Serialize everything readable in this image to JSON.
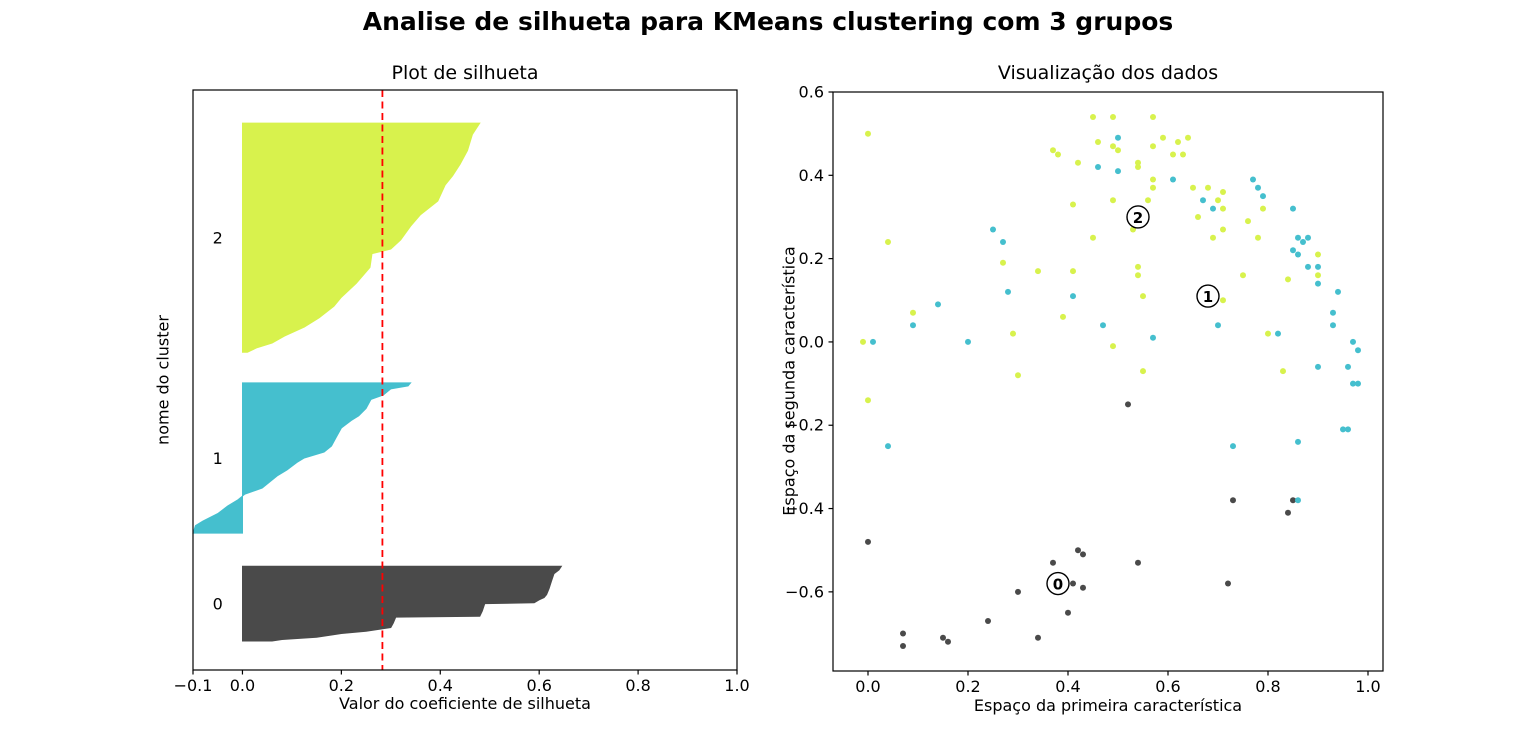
{
  "figure_title": "Analise de silhueta para KMeans clustering com 3 grupos",
  "cluster_colors": {
    "0": "#4a4a4a",
    "1": "#45bfce",
    "2": "#d8f24d"
  },
  "chart_data": [
    {
      "type": "area",
      "title": "Plot de silhueta",
      "xlabel": "Valor do coeficiente de silhueta",
      "ylabel": "nome do cluster",
      "xlim": [
        -0.1,
        1.0
      ],
      "xticks": {
        "values": [
          -0.1,
          0.0,
          0.2,
          0.4,
          0.6,
          0.8,
          1.0
        ],
        "labels": [
          "−0.1",
          "0.0",
          "0.2",
          "0.4",
          "0.6",
          "0.8",
          "1.0"
        ]
      },
      "avg_silhouette": 0.283,
      "avg_line_color": "#ff0000",
      "cluster_label_x": -0.05,
      "clusters": [
        {
          "label": "2",
          "band": [
            0.057,
            0.452
          ],
          "profile": [
            [
              0,
              0.48
            ],
            [
              0.05,
              0.465
            ],
            [
              0.12,
              0.455
            ],
            [
              0.18,
              0.44
            ],
            [
              0.23,
              0.425
            ],
            [
              0.27,
              0.41
            ],
            [
              0.34,
              0.395
            ],
            [
              0.4,
              0.36
            ],
            [
              0.45,
              0.34
            ],
            [
              0.51,
              0.32
            ],
            [
              0.55,
              0.3
            ],
            [
              0.57,
              0.262
            ],
            [
              0.63,
              0.258
            ],
            [
              0.7,
              0.23
            ],
            [
              0.76,
              0.2
            ],
            [
              0.8,
              0.185
            ],
            [
              0.85,
              0.155
            ],
            [
              0.89,
              0.125
            ],
            [
              0.93,
              0.085
            ],
            [
              0.96,
              0.06
            ],
            [
              0.98,
              0.03
            ],
            [
              1,
              0.01
            ]
          ]
        },
        {
          "label": "1",
          "band": [
            0.505,
            0.764
          ],
          "profile": [
            [
              0,
              0.34
            ],
            [
              0.02,
              0.335
            ],
            [
              0.04,
              0.3
            ],
            [
              0.08,
              0.285
            ],
            [
              0.11,
              0.26
            ],
            [
              0.17,
              0.25
            ],
            [
              0.22,
              0.235
            ],
            [
              0.25,
              0.22
            ],
            [
              0.3,
              0.2
            ],
            [
              0.36,
              0.19
            ],
            [
              0.42,
              0.18
            ],
            [
              0.46,
              0.165
            ],
            [
              0.5,
              0.125
            ],
            [
              0.53,
              0.11
            ],
            [
              0.58,
              0.09
            ],
            [
              0.62,
              0.07
            ],
            [
              0.66,
              0.055
            ],
            [
              0.7,
              0.04
            ],
            [
              0.74,
              0.005
            ],
            [
              0.78,
              -0.01
            ],
            [
              0.82,
              -0.03
            ],
            [
              0.87,
              -0.05
            ],
            [
              0.92,
              -0.08
            ],
            [
              0.95,
              -0.095
            ],
            [
              1,
              -0.1
            ]
          ]
        },
        {
          "label": "0",
          "band": [
            0.821,
            0.95
          ],
          "profile": [
            [
              0,
              0.645
            ],
            [
              0.05,
              0.64
            ],
            [
              0.1,
              0.63
            ],
            [
              0.2,
              0.625
            ],
            [
              0.3,
              0.62
            ],
            [
              0.38,
              0.615
            ],
            [
              0.42,
              0.61
            ],
            [
              0.45,
              0.6
            ],
            [
              0.49,
              0.59
            ],
            [
              0.5,
              0.49
            ],
            [
              0.6,
              0.485
            ],
            [
              0.67,
              0.48
            ],
            [
              0.68,
              0.31
            ],
            [
              0.76,
              0.305
            ],
            [
              0.82,
              0.3
            ],
            [
              0.87,
              0.25
            ],
            [
              0.9,
              0.2
            ],
            [
              0.95,
              0.15
            ],
            [
              0.98,
              0.08
            ],
            [
              1,
              0.06
            ]
          ]
        }
      ]
    },
    {
      "type": "scatter",
      "title": "Visualização dos dados",
      "xlabel": "Espaço da primeira característica",
      "ylabel": "Espaço da segunda característica",
      "xlim": [
        -0.07,
        1.03
      ],
      "ylim": [
        -0.79,
        0.6
      ],
      "xticks": {
        "values": [
          0.0,
          0.2,
          0.4,
          0.6,
          0.8,
          1.0
        ],
        "labels": [
          "0.0",
          "0.2",
          "0.4",
          "0.6",
          "0.8",
          "1.0"
        ]
      },
      "yticks": {
        "values": [
          0.6,
          0.4,
          0.2,
          0.0,
          -0.2,
          -0.4,
          -0.6
        ],
        "labels": [
          "0.6",
          "0.4",
          "0.2",
          "0.0",
          "−0.2",
          "−0.4",
          "−0.6"
        ]
      },
      "centers": [
        {
          "label": "0",
          "x": 0.38,
          "y": -0.58
        },
        {
          "label": "1",
          "x": 0.68,
          "y": 0.11
        },
        {
          "label": "2",
          "x": 0.54,
          "y": 0.3
        }
      ],
      "points": [
        [
          0.0,
          0.5,
          2
        ],
        [
          0.45,
          0.54,
          2
        ],
        [
          0.49,
          0.54,
          2
        ],
        [
          0.46,
          0.48,
          2
        ],
        [
          0.49,
          0.47,
          2
        ],
        [
          0.37,
          0.46,
          2
        ],
        [
          0.38,
          0.45,
          2
        ],
        [
          0.42,
          0.43,
          2
        ],
        [
          0.46,
          0.42,
          1
        ],
        [
          0.41,
          0.33,
          2
        ],
        [
          0.49,
          0.34,
          2
        ],
        [
          0.25,
          0.27,
          1
        ],
        [
          0.27,
          0.24,
          1
        ],
        [
          0.45,
          0.25,
          2
        ],
        [
          0.04,
          0.24,
          2
        ],
        [
          0.27,
          0.19,
          2
        ],
        [
          0.34,
          0.17,
          2
        ],
        [
          0.41,
          0.17,
          2
        ],
        [
          0.28,
          0.12,
          1
        ],
        [
          0.41,
          0.11,
          1
        ],
        [
          0.14,
          0.09,
          1
        ],
        [
          0.09,
          0.07,
          2
        ],
        [
          0.09,
          0.04,
          1
        ],
        [
          0.39,
          0.06,
          2
        ],
        [
          0.47,
          0.04,
          1
        ],
        [
          -0.01,
          0.0,
          2
        ],
        [
          0.01,
          0.0,
          1
        ],
        [
          0.2,
          0.0,
          1
        ],
        [
          0.29,
          0.02,
          2
        ],
        [
          0.3,
          -0.08,
          2
        ],
        [
          0.57,
          0.54,
          2
        ],
        [
          0.5,
          0.49,
          1
        ],
        [
          0.59,
          0.49,
          2
        ],
        [
          0.62,
          0.48,
          2
        ],
        [
          0.64,
          0.49,
          2
        ],
        [
          0.5,
          0.46,
          2
        ],
        [
          0.57,
          0.47,
          2
        ],
        [
          0.61,
          0.45,
          2
        ],
        [
          0.63,
          0.45,
          2
        ],
        [
          0.5,
          0.41,
          1
        ],
        [
          0.54,
          0.43,
          2
        ],
        [
          0.54,
          0.42,
          2
        ],
        [
          0.57,
          0.39,
          2
        ],
        [
          0.57,
          0.37,
          2
        ],
        [
          0.61,
          0.39,
          1
        ],
        [
          0.65,
          0.37,
          2
        ],
        [
          0.68,
          0.37,
          2
        ],
        [
          0.71,
          0.36,
          2
        ],
        [
          0.77,
          0.39,
          1
        ],
        [
          0.78,
          0.37,
          1
        ],
        [
          0.79,
          0.35,
          1
        ],
        [
          0.56,
          0.34,
          2
        ],
        [
          0.67,
          0.34,
          1
        ],
        [
          0.7,
          0.34,
          2
        ],
        [
          0.71,
          0.32,
          2
        ],
        [
          0.69,
          0.32,
          1
        ],
        [
          0.66,
          0.3,
          2
        ],
        [
          0.85,
          0.32,
          1
        ],
        [
          0.79,
          0.32,
          2
        ],
        [
          0.76,
          0.29,
          2
        ],
        [
          0.53,
          0.27,
          2
        ],
        [
          0.71,
          0.27,
          2
        ],
        [
          0.69,
          0.25,
          2
        ],
        [
          0.78,
          0.25,
          2
        ],
        [
          0.86,
          0.25,
          1
        ],
        [
          0.87,
          0.24,
          1
        ],
        [
          0.88,
          0.25,
          1
        ],
        [
          0.85,
          0.22,
          1
        ],
        [
          0.86,
          0.21,
          1
        ],
        [
          0.9,
          0.21,
          2
        ],
        [
          0.88,
          0.18,
          1
        ],
        [
          0.9,
          0.18,
          1
        ],
        [
          0.9,
          0.16,
          2
        ],
        [
          0.9,
          0.14,
          1
        ],
        [
          0.94,
          0.12,
          1
        ],
        [
          0.75,
          0.16,
          2
        ],
        [
          0.84,
          0.15,
          2
        ],
        [
          0.54,
          0.18,
          2
        ],
        [
          0.54,
          0.16,
          2
        ],
        [
          0.55,
          0.11,
          2
        ],
        [
          0.71,
          0.1,
          2
        ],
        [
          0.7,
          0.04,
          1
        ],
        [
          0.93,
          0.07,
          1
        ],
        [
          0.93,
          0.04,
          1
        ],
        [
          0.97,
          0.0,
          1
        ],
        [
          0.98,
          -0.02,
          1
        ],
        [
          0.82,
          0.02,
          1
        ],
        [
          0.8,
          0.02,
          2
        ],
        [
          0.57,
          0.01,
          1
        ],
        [
          0.49,
          -0.01,
          2
        ],
        [
          0.55,
          -0.07,
          2
        ],
        [
          0.83,
          -0.07,
          2
        ],
        [
          0.9,
          -0.06,
          1
        ],
        [
          0.96,
          -0.06,
          1
        ],
        [
          0.97,
          -0.1,
          1
        ],
        [
          0.98,
          -0.1,
          1
        ],
        [
          0.0,
          -0.14,
          2
        ],
        [
          0.04,
          -0.25,
          1
        ],
        [
          0.0,
          -0.48,
          0
        ],
        [
          0.37,
          -0.53,
          0
        ],
        [
          0.42,
          -0.5,
          0
        ],
        [
          0.43,
          -0.51,
          0
        ],
        [
          0.41,
          -0.58,
          0
        ],
        [
          0.43,
          -0.59,
          0
        ],
        [
          0.3,
          -0.6,
          0
        ],
        [
          0.4,
          -0.65,
          0
        ],
        [
          0.24,
          -0.67,
          0
        ],
        [
          0.07,
          -0.7,
          0
        ],
        [
          0.15,
          -0.71,
          0
        ],
        [
          0.16,
          -0.72,
          0
        ],
        [
          0.07,
          -0.73,
          0
        ],
        [
          0.34,
          -0.71,
          0
        ],
        [
          0.52,
          -0.15,
          0
        ],
        [
          0.95,
          -0.21,
          1
        ],
        [
          0.96,
          -0.21,
          1
        ],
        [
          0.86,
          -0.24,
          1
        ],
        [
          0.73,
          -0.25,
          1
        ],
        [
          0.73,
          -0.38,
          0
        ],
        [
          0.85,
          -0.38,
          0
        ],
        [
          0.86,
          -0.38,
          1
        ],
        [
          0.84,
          -0.41,
          0
        ],
        [
          0.54,
          -0.53,
          0
        ],
        [
          0.72,
          -0.58,
          0
        ]
      ]
    }
  ]
}
